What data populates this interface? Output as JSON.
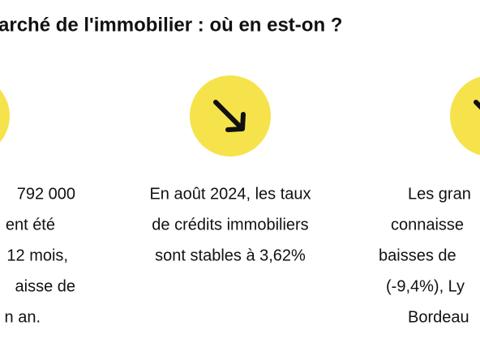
{
  "header": {
    "title": "arché de l'immobilier : où en est-on ?"
  },
  "columns": [
    {
      "lines": [
        "792 000",
        "ent été",
        "12 mois,",
        "aisse de",
        "n an."
      ]
    },
    {
      "lines": [
        "En août 2024, les taux",
        "de crédits immobiliers",
        "sont stables à 3,62%"
      ]
    },
    {
      "lines": [
        "Les gran",
        "connaisse",
        "baisses de",
        "(-9,4%), Ly",
        "Bordeau"
      ]
    }
  ]
}
